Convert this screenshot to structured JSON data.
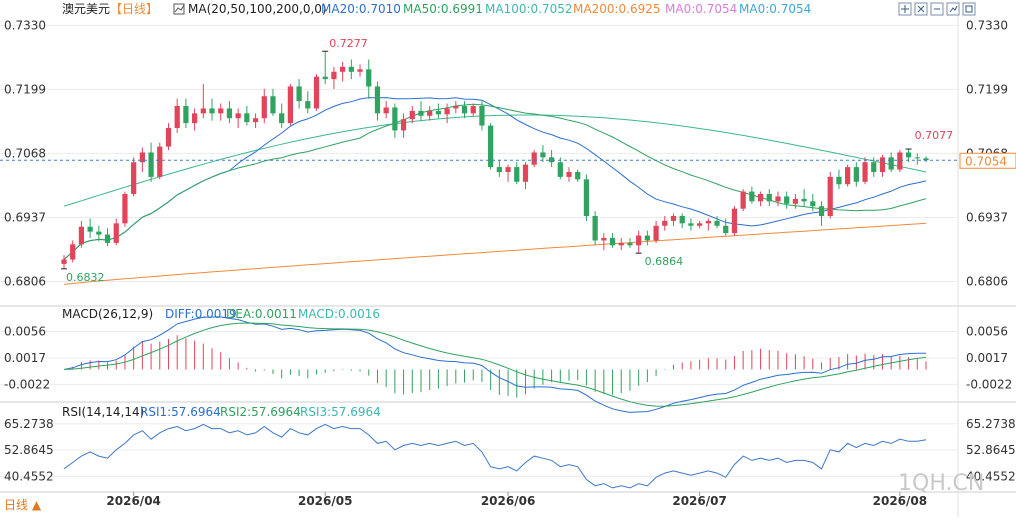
{
  "header": {
    "symbol": "澳元美元",
    "period": "【日线】",
    "ma_label": "MA(20,50,100,200,0,0)",
    "ma20": "MA20:0.7010",
    "ma50": "MA50:0.6991",
    "ma100": "MA100:0.7052",
    "ma200": "MA200:0.6925",
    "ma0a": "MA0:0.7054",
    "ma0b": "MA0:0.7054",
    "toolbar_icons": [
      "move-icon",
      "pan-icon",
      "zoom-icon",
      "indicator-icon",
      "maximize-icon"
    ]
  },
  "price_panel": {
    "ticks": [
      "0.7330",
      "0.7199",
      "0.7068",
      "0.6937",
      "0.6806"
    ],
    "current_price": "0.7054",
    "high_label": "0.7277",
    "low_label": "0.6832",
    "mid_low_label": "0.6864",
    "recent_high_label": "0.7077"
  },
  "macd_panel": {
    "label": "MACD(26,12,9)",
    "diff": "DIFF:0.0019",
    "dea": "DEA:0.0011",
    "macd": "MACD:0.0016",
    "ticks": [
      "0.0056",
      "0.0017",
      "-0.0022"
    ]
  },
  "rsi_panel": {
    "label": "RSI(14,14,14)",
    "rsi1": "RSI1:57.6964",
    "rsi2": "RSI2:57.6964",
    "rsi3": "RSI3:57.6964",
    "ticks": [
      "65.2738",
      "52.8645",
      "40.4552"
    ]
  },
  "xaxis": {
    "labels": [
      "2026/04",
      "2026/05",
      "2026/06",
      "2026/07",
      "2026/08"
    ]
  },
  "footer": {
    "period_button": "日线 ▲",
    "watermark": "1QH.CN"
  },
  "colors": {
    "up": "#e0455a",
    "down": "#2fa35f",
    "ma20": "#2a6fcf",
    "ma50": "#2fa35f",
    "ma100": "#3cb88c",
    "ma200": "#f08a3a",
    "grid": "#d8d8d8"
  },
  "chart_data": {
    "type": "candlestick",
    "x_dates": [
      "2026/03/20",
      "2026/03/23",
      "2026/03/24",
      "2026/03/25",
      "2026/03/26",
      "2026/03/27",
      "2026/03/30",
      "2026/03/31",
      "2026/04/01",
      "2026/04/02",
      "2026/04/03",
      "2026/04/06",
      "2026/04/07",
      "2026/04/08",
      "2026/04/09",
      "2026/04/10",
      "2026/04/13",
      "2026/04/14",
      "2026/04/15",
      "2026/04/16",
      "2026/04/17",
      "2026/04/20",
      "2026/04/21",
      "2026/04/22",
      "2026/04/23",
      "2026/04/24",
      "2026/04/27",
      "2026/04/28",
      "2026/04/29",
      "2026/04/30",
      "2026/05/01",
      "2026/05/04",
      "2026/05/05",
      "2026/05/06",
      "2026/05/07",
      "2026/05/08",
      "2026/05/11",
      "2026/05/12",
      "2026/05/13",
      "2026/05/14",
      "2026/05/15",
      "2026/05/18",
      "2026/05/19",
      "2026/05/20",
      "2026/05/21",
      "2026/05/22",
      "2026/05/25",
      "2026/05/26",
      "2026/05/27",
      "2026/05/28",
      "2026/05/29",
      "2026/06/01",
      "2026/06/02",
      "2026/06/03",
      "2026/06/04",
      "2026/06/05",
      "2026/06/08",
      "2026/06/09",
      "2026/06/10",
      "2026/06/11",
      "2026/06/12",
      "2026/06/15",
      "2026/06/16",
      "2026/06/17",
      "2026/06/18",
      "2026/06/19",
      "2026/06/22",
      "2026/06/23",
      "2026/06/24",
      "2026/06/25",
      "2026/06/26",
      "2026/06/29",
      "2026/06/30",
      "2026/07/01",
      "2026/07/02",
      "2026/07/03",
      "2026/07/06",
      "2026/07/07",
      "2026/07/08",
      "2026/07/09",
      "2026/07/10",
      "2026/07/13",
      "2026/07/14",
      "2026/07/15",
      "2026/07/16",
      "2026/07/17",
      "2026/07/20",
      "2026/07/21",
      "2026/07/22",
      "2026/07/23",
      "2026/07/24",
      "2026/07/27",
      "2026/07/28",
      "2026/07/29",
      "2026/07/30",
      "2026/07/31",
      "2026/08/03",
      "2026/08/04",
      "2026/08/05",
      "2026/08/06"
    ],
    "ohlc": [
      [
        0.6842,
        0.686,
        0.6832,
        0.6851
      ],
      [
        0.6851,
        0.689,
        0.6845,
        0.6882
      ],
      [
        0.6882,
        0.693,
        0.6875,
        0.6918
      ],
      [
        0.6918,
        0.6935,
        0.6895,
        0.6908
      ],
      [
        0.6908,
        0.692,
        0.6888,
        0.6902
      ],
      [
        0.6902,
        0.6915,
        0.6878,
        0.6885
      ],
      [
        0.6885,
        0.6935,
        0.688,
        0.6925
      ],
      [
        0.6925,
        0.699,
        0.6918,
        0.6985
      ],
      [
        0.6985,
        0.706,
        0.698,
        0.705
      ],
      [
        0.705,
        0.708,
        0.703,
        0.707
      ],
      [
        0.707,
        0.709,
        0.701,
        0.702
      ],
      [
        0.702,
        0.709,
        0.7015,
        0.7082
      ],
      [
        0.7082,
        0.713,
        0.7075,
        0.712
      ],
      [
        0.712,
        0.718,
        0.711,
        0.7165
      ],
      [
        0.7165,
        0.718,
        0.712,
        0.713
      ],
      [
        0.713,
        0.716,
        0.7115,
        0.715
      ],
      [
        0.715,
        0.721,
        0.714,
        0.716
      ],
      [
        0.716,
        0.718,
        0.7135,
        0.715
      ],
      [
        0.715,
        0.717,
        0.7135,
        0.716
      ],
      [
        0.716,
        0.7175,
        0.713,
        0.714
      ],
      [
        0.714,
        0.716,
        0.712,
        0.715
      ],
      [
        0.715,
        0.7165,
        0.7125,
        0.7132
      ],
      [
        0.7132,
        0.715,
        0.712,
        0.714
      ],
      [
        0.714,
        0.72,
        0.713,
        0.7185
      ],
      [
        0.7185,
        0.72,
        0.7145,
        0.715
      ],
      [
        0.715,
        0.717,
        0.712,
        0.713
      ],
      [
        0.713,
        0.721,
        0.7125,
        0.7205
      ],
      [
        0.7205,
        0.722,
        0.716,
        0.7175
      ],
      [
        0.7175,
        0.7195,
        0.715,
        0.716
      ],
      [
        0.716,
        0.723,
        0.7155,
        0.7225
      ],
      [
        0.7225,
        0.7277,
        0.721,
        0.722
      ],
      [
        0.722,
        0.7245,
        0.72,
        0.7235
      ],
      [
        0.7235,
        0.7255,
        0.7215,
        0.7245
      ],
      [
        0.7245,
        0.726,
        0.722,
        0.7235
      ],
      [
        0.7235,
        0.725,
        0.7225,
        0.724
      ],
      [
        0.724,
        0.726,
        0.718,
        0.7205
      ],
      [
        0.7205,
        0.7215,
        0.7135,
        0.715
      ],
      [
        0.715,
        0.7175,
        0.714,
        0.7162
      ],
      [
        0.7162,
        0.717,
        0.71,
        0.7115
      ],
      [
        0.7115,
        0.715,
        0.71,
        0.7138
      ],
      [
        0.7138,
        0.7165,
        0.713,
        0.7155
      ],
      [
        0.7155,
        0.7175,
        0.7135,
        0.7145
      ],
      [
        0.7145,
        0.7165,
        0.7135,
        0.7155
      ],
      [
        0.7155,
        0.717,
        0.714,
        0.7148
      ],
      [
        0.7148,
        0.717,
        0.713,
        0.716
      ],
      [
        0.716,
        0.7175,
        0.715,
        0.7165
      ],
      [
        0.7165,
        0.7175,
        0.714,
        0.715
      ],
      [
        0.715,
        0.717,
        0.7145,
        0.7165
      ],
      [
        0.7165,
        0.7175,
        0.7115,
        0.7125
      ],
      [
        0.7125,
        0.713,
        0.7035,
        0.704
      ],
      [
        0.704,
        0.7055,
        0.702,
        0.703
      ],
      [
        0.703,
        0.7045,
        0.701,
        0.704
      ],
      [
        0.704,
        0.705,
        0.7005,
        0.701
      ],
      [
        0.701,
        0.705,
        0.6995,
        0.7045
      ],
      [
        0.7045,
        0.7075,
        0.704,
        0.707
      ],
      [
        0.707,
        0.7085,
        0.705,
        0.706
      ],
      [
        0.706,
        0.7075,
        0.704,
        0.705
      ],
      [
        0.705,
        0.706,
        0.7015,
        0.702
      ],
      [
        0.702,
        0.704,
        0.701,
        0.703
      ],
      [
        0.703,
        0.7035,
        0.701,
        0.7015
      ],
      [
        0.7015,
        0.7025,
        0.693,
        0.694
      ],
      [
        0.694,
        0.695,
        0.688,
        0.689
      ],
      [
        0.689,
        0.6905,
        0.687,
        0.6895
      ],
      [
        0.6895,
        0.6905,
        0.6875,
        0.688
      ],
      [
        0.688,
        0.6895,
        0.687,
        0.6885
      ],
      [
        0.6885,
        0.6895,
        0.6875,
        0.688
      ],
      [
        0.688,
        0.691,
        0.6864,
        0.69
      ],
      [
        0.69,
        0.691,
        0.688,
        0.689
      ],
      [
        0.689,
        0.693,
        0.6885,
        0.692
      ],
      [
        0.692,
        0.694,
        0.691,
        0.693
      ],
      [
        0.693,
        0.6945,
        0.692,
        0.694
      ],
      [
        0.694,
        0.6945,
        0.6915,
        0.6925
      ],
      [
        0.6925,
        0.6935,
        0.691,
        0.692
      ],
      [
        0.692,
        0.693,
        0.6915,
        0.6925
      ],
      [
        0.6925,
        0.6935,
        0.691,
        0.693
      ],
      [
        0.693,
        0.694,
        0.6915,
        0.692
      ],
      [
        0.692,
        0.6935,
        0.69,
        0.6905
      ],
      [
        0.6905,
        0.696,
        0.69,
        0.6955
      ],
      [
        0.6955,
        0.6995,
        0.695,
        0.699
      ],
      [
        0.699,
        0.7,
        0.6965,
        0.697
      ],
      [
        0.697,
        0.699,
        0.696,
        0.6985
      ],
      [
        0.6985,
        0.6995,
        0.696,
        0.697
      ],
      [
        0.697,
        0.699,
        0.696,
        0.698
      ],
      [
        0.698,
        0.699,
        0.6955,
        0.6965
      ],
      [
        0.6965,
        0.6985,
        0.6955,
        0.6975
      ],
      [
        0.6975,
        0.6995,
        0.696,
        0.697
      ],
      [
        0.697,
        0.6985,
        0.695,
        0.696
      ],
      [
        0.696,
        0.697,
        0.692,
        0.694
      ],
      [
        0.694,
        0.703,
        0.6935,
        0.702
      ],
      [
        0.702,
        0.7035,
        0.6995,
        0.7005
      ],
      [
        0.7005,
        0.7045,
        0.7,
        0.704
      ],
      [
        0.704,
        0.705,
        0.7,
        0.701
      ],
      [
        0.701,
        0.706,
        0.7005,
        0.705
      ],
      [
        0.705,
        0.706,
        0.702,
        0.703
      ],
      [
        0.703,
        0.7065,
        0.702,
        0.706
      ],
      [
        0.706,
        0.707,
        0.703,
        0.7035
      ],
      [
        0.7035,
        0.7075,
        0.703,
        0.707
      ],
      [
        0.707,
        0.7077,
        0.705,
        0.706
      ],
      [
        0.706,
        0.7068,
        0.7045,
        0.7058
      ],
      [
        0.7058,
        0.7062,
        0.705,
        0.7054
      ]
    ],
    "price_ylim": [
      0.676,
      0.7345
    ],
    "ma_end_values": {
      "ma20": 0.701,
      "ma50": 0.6991,
      "ma100": 0.7052,
      "ma200": 0.6925
    },
    "macd_ylim": [
      -0.0045,
      0.007
    ],
    "rsi_ylim": [
      34,
      68
    ],
    "rsi_values": [
      44,
      47,
      50,
      52,
      50,
      49,
      53,
      56,
      60,
      62,
      58,
      61,
      63,
      64,
      62,
      63,
      65,
      63,
      63,
      61,
      62,
      60,
      61,
      64,
      61,
      59,
      63,
      61,
      60,
      63,
      65,
      63,
      64,
      63,
      63,
      60,
      56,
      57,
      53,
      55,
      56,
      55,
      56,
      55,
      56,
      57,
      55,
      56,
      52,
      45,
      44,
      45,
      43,
      47,
      50,
      49,
      48,
      45,
      46,
      45,
      39,
      36,
      37,
      35,
      36,
      35,
      37,
      36,
      40,
      42,
      43,
      42,
      41,
      42,
      43,
      42,
      40,
      46,
      50,
      48,
      49,
      48,
      49,
      47,
      48,
      48,
      47,
      44,
      53,
      52,
      56,
      54,
      56,
      55,
      57,
      56,
      58,
      57,
      57,
      57.7
    ]
  }
}
